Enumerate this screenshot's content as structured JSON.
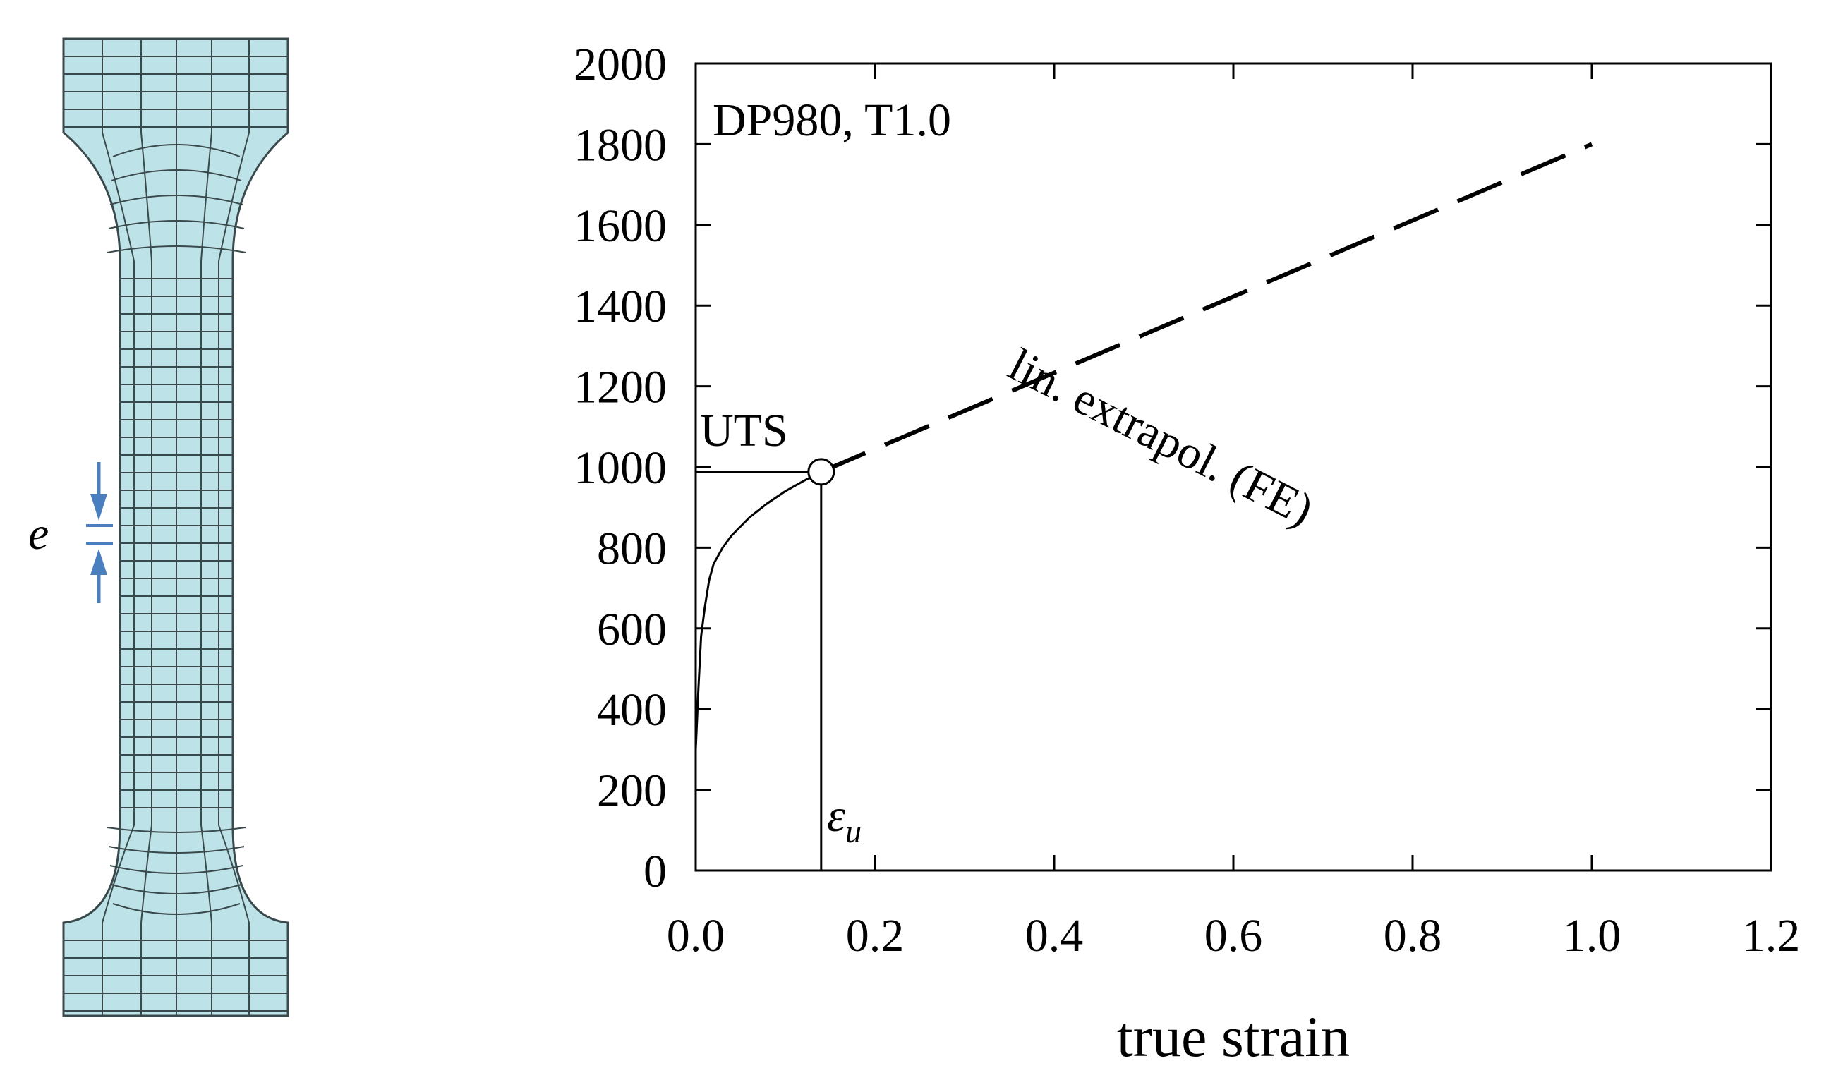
{
  "specimen": {
    "label": "e",
    "mesh_fill": "#bde3e8",
    "mesh_stroke": "#3a4a4c",
    "arrow_color": "#4a7fbf"
  },
  "chart_data": {
    "type": "line",
    "title": "",
    "xlabel": "true strain",
    "ylabel": "",
    "xlim": [
      0.0,
      1.2
    ],
    "ylim": [
      0,
      2000
    ],
    "x_ticks": [
      "0.0",
      "0.2",
      "0.4",
      "0.6",
      "0.8",
      "1.0",
      "1.2"
    ],
    "y_ticks": [
      "0",
      "200",
      "400",
      "600",
      "800",
      "1000",
      "1200",
      "1400",
      "1600",
      "1800",
      "2000"
    ],
    "grid": false,
    "series": [
      {
        "style": "solid",
        "x": [
          0.0,
          0.003,
          0.006,
          0.01,
          0.015,
          0.02,
          0.03,
          0.04,
          0.06,
          0.08,
          0.1,
          0.12,
          0.14
        ],
        "y": [
          300,
          450,
          580,
          650,
          720,
          760,
          800,
          830,
          875,
          910,
          940,
          965,
          988
        ]
      },
      {
        "style": "dashed",
        "x": [
          0.14,
          1.0
        ],
        "y": [
          988,
          1800
        ]
      }
    ],
    "annotations": {
      "material": "DP980, T1.0",
      "uts_label": "UTS",
      "uts_point": {
        "x": 0.14,
        "y": 988
      },
      "eps_symbol": "ε",
      "eps_sub": "u",
      "extrapolation_label": "lin. extrapol. (FE)"
    }
  }
}
